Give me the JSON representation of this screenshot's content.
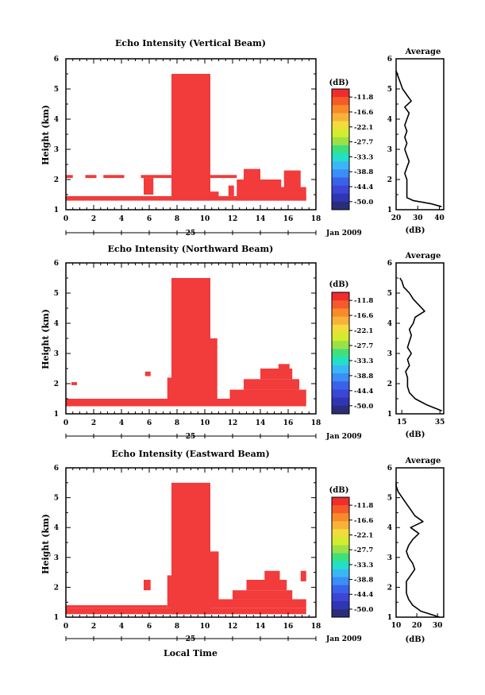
{
  "figure": {
    "xlabel": "Local Time",
    "date_label": "Jan 2009",
    "day_label": "25",
    "ylabel": "Height (km)",
    "colorbar_unit": "(dB)",
    "colorbar_ticks": [
      "-11.8",
      "-16.6",
      "-22.1",
      "-27.7",
      "-33.3",
      "-38.8",
      "-44.4",
      "-50.0"
    ],
    "colorbar_colors": [
      "#ef2d2d",
      "#f55a2a",
      "#f88a2a",
      "#f8b23a",
      "#f2dc3c",
      "#d4ec2e",
      "#9ce046",
      "#3ee07e",
      "#22e0c8",
      "#3ab6f6",
      "#3a8ef6",
      "#3a62e8",
      "#3c46d6",
      "#2e36b4",
      "#2a2e7a"
    ],
    "echo_color": "#f23b3b",
    "avg_title": "Average",
    "avg_unit": "(dB)"
  },
  "chart_data": [
    {
      "type": "heatmap",
      "title": "Echo Intensity (Vertical Beam)",
      "xlabel": "Local Time",
      "ylabel": "Height (km)",
      "xlim": [
        0,
        18
      ],
      "ylim": [
        1,
        6
      ],
      "xticks": [
        "0",
        "2",
        "4",
        "6",
        "8",
        "10",
        "12",
        "14",
        "16",
        "18"
      ],
      "yticks": [
        "1",
        "2",
        "3",
        "4",
        "5",
        "6"
      ],
      "echo_regions": [
        {
          "x": [
            0,
            17.3
          ],
          "y": [
            1.3,
            1.45
          ]
        },
        {
          "x": [
            0,
            0.5
          ],
          "y": [
            2.05,
            2.15
          ]
        },
        {
          "x": [
            1.4,
            2.2
          ],
          "y": [
            2.05,
            2.15
          ]
        },
        {
          "x": [
            2.7,
            4.2
          ],
          "y": [
            2.05,
            2.15
          ]
        },
        {
          "x": [
            5.4,
            7.6
          ],
          "y": [
            2.05,
            2.15
          ]
        },
        {
          "x": [
            5.6,
            6.3
          ],
          "y": [
            1.5,
            2.05
          ]
        },
        {
          "x": [
            7.6,
            10.4
          ],
          "y": [
            1.3,
            5.5
          ]
        },
        {
          "x": [
            10.4,
            11.0
          ],
          "y": [
            1.4,
            1.6
          ]
        },
        {
          "x": [
            10.4,
            12.3
          ],
          "y": [
            2.05,
            2.15
          ]
        },
        {
          "x": [
            11.7,
            12.1
          ],
          "y": [
            1.45,
            1.8
          ]
        },
        {
          "x": [
            12.3,
            17.3
          ],
          "y": [
            1.3,
            1.75
          ]
        },
        {
          "x": [
            12.3,
            15.5
          ],
          "y": [
            1.75,
            2.0
          ]
        },
        {
          "x": [
            12.8,
            14.0
          ],
          "y": [
            2.0,
            2.35
          ]
        },
        {
          "x": [
            15.7,
            16.9
          ],
          "y": [
            1.75,
            2.3
          ]
        }
      ],
      "average_profile": {
        "xlabel": "(dB)",
        "xlim": [
          20,
          42
        ],
        "xticks": [
          "20",
          "30",
          "40"
        ],
        "height": [
          1.1,
          1.2,
          1.3,
          1.4,
          1.6,
          1.8,
          2.0,
          2.2,
          2.4,
          2.6,
          2.8,
          3.0,
          3.2,
          3.4,
          3.6,
          3.8,
          4.0,
          4.2,
          4.4,
          4.6,
          4.8,
          5.0,
          5.2,
          5.4,
          5.6
        ],
        "value": [
          41,
          36,
          28,
          25,
          25,
          25,
          25,
          24,
          25,
          26,
          25,
          24,
          25,
          24,
          25,
          24,
          25,
          26,
          24,
          27,
          25,
          23,
          22,
          21,
          20
        ]
      }
    },
    {
      "type": "heatmap",
      "title": "Echo Intensity (Northward Beam)",
      "xlabel": "Local Time",
      "ylabel": "Height (km)",
      "xlim": [
        0,
        18
      ],
      "ylim": [
        1,
        6
      ],
      "xticks": [
        "0",
        "2",
        "4",
        "6",
        "8",
        "10",
        "12",
        "14",
        "16",
        "18"
      ],
      "yticks": [
        "1",
        "2",
        "3",
        "4",
        "5",
        "6"
      ],
      "echo_regions": [
        {
          "x": [
            0,
            17.3
          ],
          "y": [
            1.25,
            1.5
          ]
        },
        {
          "x": [
            0.4,
            0.8
          ],
          "y": [
            1.95,
            2.05
          ]
        },
        {
          "x": [
            5.7,
            6.1
          ],
          "y": [
            2.25,
            2.4
          ]
        },
        {
          "x": [
            7.3,
            7.6
          ],
          "y": [
            1.5,
            2.2
          ]
        },
        {
          "x": [
            7.6,
            10.4
          ],
          "y": [
            1.3,
            5.5
          ]
        },
        {
          "x": [
            10.4,
            10.9
          ],
          "y": [
            1.5,
            3.5
          ]
        },
        {
          "x": [
            11.8,
            17.3
          ],
          "y": [
            1.5,
            1.8
          ]
        },
        {
          "x": [
            12.8,
            16.8
          ],
          "y": [
            1.8,
            2.15
          ]
        },
        {
          "x": [
            14.0,
            16.3
          ],
          "y": [
            2.15,
            2.5
          ]
        },
        {
          "x": [
            15.3,
            16.1
          ],
          "y": [
            2.5,
            2.65
          ]
        }
      ],
      "average_profile": {
        "xlabel": "(dB)",
        "xlim": [
          12,
          37
        ],
        "xticks": [
          "15",
          "35"
        ],
        "height": [
          1.1,
          1.3,
          1.5,
          1.7,
          1.9,
          2.0,
          2.2,
          2.4,
          2.6,
          2.8,
          3.0,
          3.2,
          3.4,
          3.6,
          3.8,
          4.0,
          4.2,
          4.4,
          4.6,
          4.8,
          5.0,
          5.2,
          5.4,
          5.5
        ],
        "value": [
          36,
          28,
          22,
          19,
          18,
          18,
          18,
          17,
          19,
          18,
          20,
          18,
          19,
          20,
          19,
          21,
          22,
          27,
          24,
          21,
          19,
          16,
          15,
          14
        ]
      }
    },
    {
      "type": "heatmap",
      "title": "Echo Intensity (Eastward Beam)",
      "xlabel": "Local Time",
      "ylabel": "Height (km)",
      "xlim": [
        0,
        18
      ],
      "ylim": [
        1,
        6
      ],
      "xticks": [
        "0",
        "2",
        "4",
        "6",
        "8",
        "10",
        "12",
        "14",
        "16",
        "18"
      ],
      "yticks": [
        "1",
        "2",
        "3",
        "4",
        "5",
        "6"
      ],
      "echo_regions": [
        {
          "x": [
            0,
            17.3
          ],
          "y": [
            1.1,
            1.3
          ]
        },
        {
          "x": [
            0,
            7.3
          ],
          "y": [
            1.3,
            1.4
          ]
        },
        {
          "x": [
            5.6,
            6.1
          ],
          "y": [
            1.9,
            2.25
          ]
        },
        {
          "x": [
            7.3,
            7.6
          ],
          "y": [
            1.3,
            2.4
          ]
        },
        {
          "x": [
            7.6,
            10.4
          ],
          "y": [
            1.1,
            5.5
          ]
        },
        {
          "x": [
            10.4,
            11.0
          ],
          "y": [
            1.3,
            3.2
          ]
        },
        {
          "x": [
            11.0,
            17.3
          ],
          "y": [
            1.3,
            1.6
          ]
        },
        {
          "x": [
            12.0,
            16.3
          ],
          "y": [
            1.6,
            1.9
          ]
        },
        {
          "x": [
            13.0,
            15.9
          ],
          "y": [
            1.9,
            2.25
          ]
        },
        {
          "x": [
            14.3,
            15.4
          ],
          "y": [
            2.25,
            2.55
          ]
        },
        {
          "x": [
            16.9,
            17.3
          ],
          "y": [
            2.2,
            2.55
          ]
        }
      ],
      "average_profile": {
        "xlabel": "(dB)",
        "xlim": [
          10,
          33
        ],
        "xticks": [
          "10",
          "20",
          "30"
        ],
        "height": [
          1.0,
          1.2,
          1.4,
          1.6,
          1.8,
          2.0,
          2.2,
          2.4,
          2.6,
          2.8,
          3.0,
          3.2,
          3.4,
          3.6,
          3.8,
          4.0,
          4.2,
          4.4,
          4.6,
          4.8,
          5.0,
          5.2,
          5.4,
          5.5
        ],
        "value": [
          31,
          22,
          18,
          16,
          15,
          15,
          15,
          17,
          19,
          18,
          16,
          15,
          16,
          18,
          21,
          17,
          23,
          19,
          17,
          15,
          13,
          11,
          10,
          10
        ]
      }
    }
  ]
}
